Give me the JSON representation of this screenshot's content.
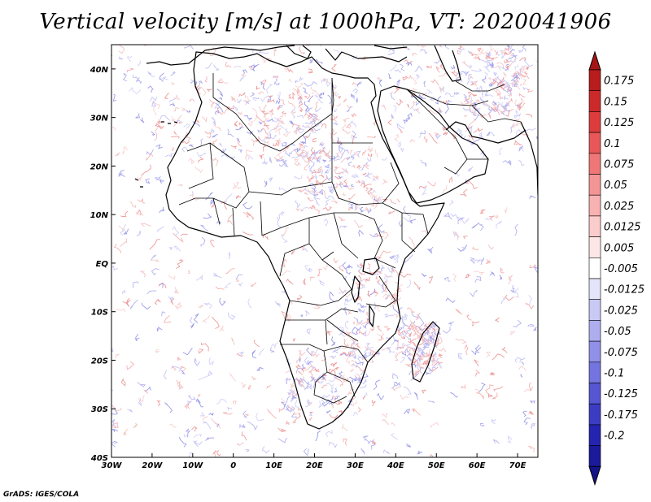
{
  "title": "Vertical velocity [m/s] at 1000hPa, VT: 2020041906",
  "credit": "GrADS: IGES/COLA",
  "map": {
    "lon_range": [
      -30,
      75
    ],
    "lat_range": [
      -40,
      45
    ],
    "lon_ticks": [
      "30W",
      "20W",
      "10W",
      "0",
      "10E",
      "20E",
      "30E",
      "40E",
      "50E",
      "60E",
      "70E"
    ],
    "lat_ticks": [
      "40S",
      "30S",
      "20S",
      "10S",
      "EQ",
      "10N",
      "20N",
      "30N",
      "40N"
    ],
    "lon_tick_values": [
      -30,
      -20,
      -10,
      0,
      10,
      20,
      30,
      40,
      50,
      60,
      70
    ],
    "lat_tick_values": [
      -40,
      -30,
      -20,
      -10,
      0,
      10,
      20,
      30,
      40
    ]
  },
  "colorbar": {
    "labels": [
      "0.175",
      "0.15",
      "0.125",
      "0.1",
      "0.075",
      "0.05",
      "0.025",
      "0.0125",
      "0.005",
      "-0.005",
      "-0.0125",
      "-0.025",
      "-0.05",
      "-0.075",
      "-0.1",
      "-0.125",
      "-0.175",
      "-0.2"
    ],
    "colors": [
      "#b81c1c",
      "#cc2a2a",
      "#dd3c3c",
      "#e85858",
      "#ef7777",
      "#f49595",
      "#f8b2b2",
      "#fbcccc",
      "#fde6e6",
      "#ffffff",
      "#e4e4fb",
      "#c9c9f5",
      "#aeaeef",
      "#9090e8",
      "#7474df",
      "#5656d2",
      "#3c3cc3",
      "#2424b0",
      "#1a1a9a"
    ],
    "top_color": "#a51515",
    "bottom_color": "#14148a"
  }
}
